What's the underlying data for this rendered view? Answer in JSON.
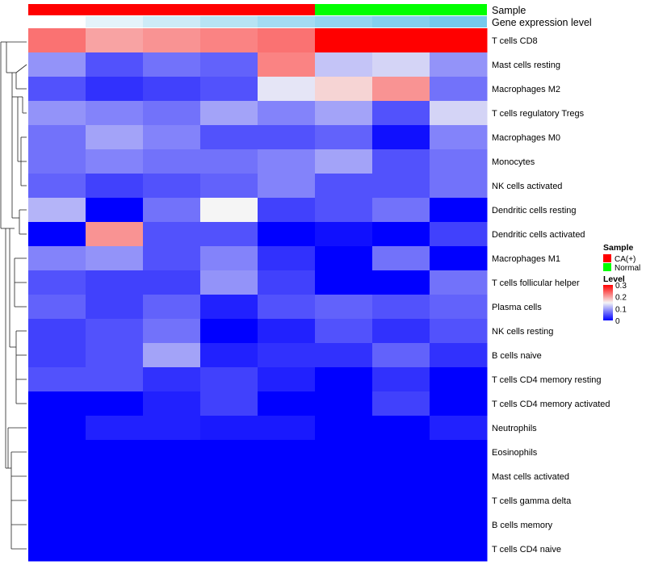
{
  "chart_data": {
    "type": "heatmap",
    "annotation_tracks": [
      {
        "name": "Sample",
        "values": [
          "CA(+)",
          "CA(+)",
          "CA(+)",
          "CA(+)",
          "CA(+)",
          "Normal",
          "Normal",
          "Normal"
        ]
      },
      {
        "name": "Gene expression level",
        "values": [
          0.02,
          0.04,
          0.06,
          0.08,
          0.1,
          0.12,
          0.14,
          0.16
        ]
      }
    ],
    "rows": [
      "T cells CD8",
      "Mast cells resting",
      "Macrophages M2",
      "T cells regulatory  Tregs",
      "Macrophages M0",
      "Monocytes",
      "NK cells activated",
      "Dendritic cells resting",
      "Dendritic cells activated",
      "Macrophages M1",
      "T cells follicular helper",
      "Plasma cells",
      "NK cells resting",
      "B cells naive",
      "T cells CD4 memory resting",
      "T cells CD4 memory activated",
      "Neutrophils",
      "Eosinophils",
      "Mast cells activated",
      "T cells gamma delta",
      "B cells memory",
      "T cells CD4 naive"
    ],
    "values": [
      [
        0.23,
        0.2,
        0.21,
        0.22,
        0.23,
        0.3,
        0.3,
        0.3
      ],
      [
        0.09,
        0.05,
        0.07,
        0.06,
        0.22,
        0.12,
        0.13,
        0.09
      ],
      [
        0.05,
        0.03,
        0.04,
        0.05,
        0.14,
        0.17,
        0.21,
        0.07
      ],
      [
        0.09,
        0.08,
        0.07,
        0.1,
        0.08,
        0.1,
        0.05,
        0.13
      ],
      [
        0.07,
        0.1,
        0.08,
        0.05,
        0.05,
        0.06,
        0.01,
        0.08
      ],
      [
        0.07,
        0.08,
        0.07,
        0.07,
        0.08,
        0.1,
        0.05,
        0.07
      ],
      [
        0.06,
        0.04,
        0.05,
        0.06,
        0.08,
        0.05,
        0.05,
        0.07
      ],
      [
        0.11,
        0.0,
        0.07,
        0.15,
        0.04,
        0.05,
        0.07,
        0.0
      ],
      [
        0.0,
        0.21,
        0.05,
        0.05,
        0.0,
        0.01,
        0.0,
        0.04
      ],
      [
        0.08,
        0.09,
        0.05,
        0.08,
        0.03,
        0.0,
        0.07,
        0.0
      ],
      [
        0.05,
        0.04,
        0.04,
        0.09,
        0.04,
        0.0,
        0.0,
        0.07
      ],
      [
        0.06,
        0.04,
        0.06,
        0.02,
        0.05,
        0.06,
        0.05,
        0.06
      ],
      [
        0.04,
        0.05,
        0.07,
        0.0,
        0.02,
        0.05,
        0.03,
        0.05
      ],
      [
        0.04,
        0.05,
        0.1,
        0.02,
        0.03,
        0.03,
        0.06,
        0.03
      ],
      [
        0.05,
        0.05,
        0.03,
        0.04,
        0.02,
        0.0,
        0.03,
        0.0
      ],
      [
        0.0,
        0.0,
        0.02,
        0.04,
        0.0,
        0.0,
        0.04,
        0.0
      ],
      [
        0.0,
        0.02,
        0.02,
        0.015,
        0.015,
        0.0,
        0.0,
        0.02
      ],
      [
        0.0,
        0.0,
        0.0,
        0.0,
        0.0,
        0.0,
        0.0,
        0.0
      ],
      [
        0.0,
        0.0,
        0.0,
        0.0,
        0.0,
        0.0,
        0.0,
        0.0
      ],
      [
        0.0,
        0.0,
        0.0,
        0.0,
        0.0,
        0.0,
        0.0,
        0.0
      ],
      [
        0.0,
        0.0,
        0.0,
        0.0,
        0.0,
        0.0,
        0.0,
        0.0
      ],
      [
        0.0,
        0.0,
        0.0,
        0.0,
        0.0,
        0.0,
        0.0,
        0.0
      ]
    ],
    "color_scale": {
      "min": 0,
      "mid": 0.15,
      "max": 0.3,
      "low_color": "#0000FF",
      "mid_color": "#F5F5F5",
      "high_color": "#FF0000"
    },
    "legend": {
      "sample_title": "Sample",
      "sample_items": [
        {
          "label": "CA(+)",
          "color": "#FF0000"
        },
        {
          "label": "Normal",
          "color": "#00FF00"
        }
      ],
      "level_title": "Level",
      "level_ticks": [
        "0.3",
        "0.2",
        "0.1",
        "0"
      ],
      "placement": "right"
    },
    "gene_expression_colors": [
      "#FFFFFF",
      "#E4F3FA",
      "#CDEBF7",
      "#B7E3F4",
      "#A3DBF2",
      "#93D5F0",
      "#84CFEE",
      "#75C9EC"
    ],
    "dendrogram": "row clustering (left side)"
  }
}
